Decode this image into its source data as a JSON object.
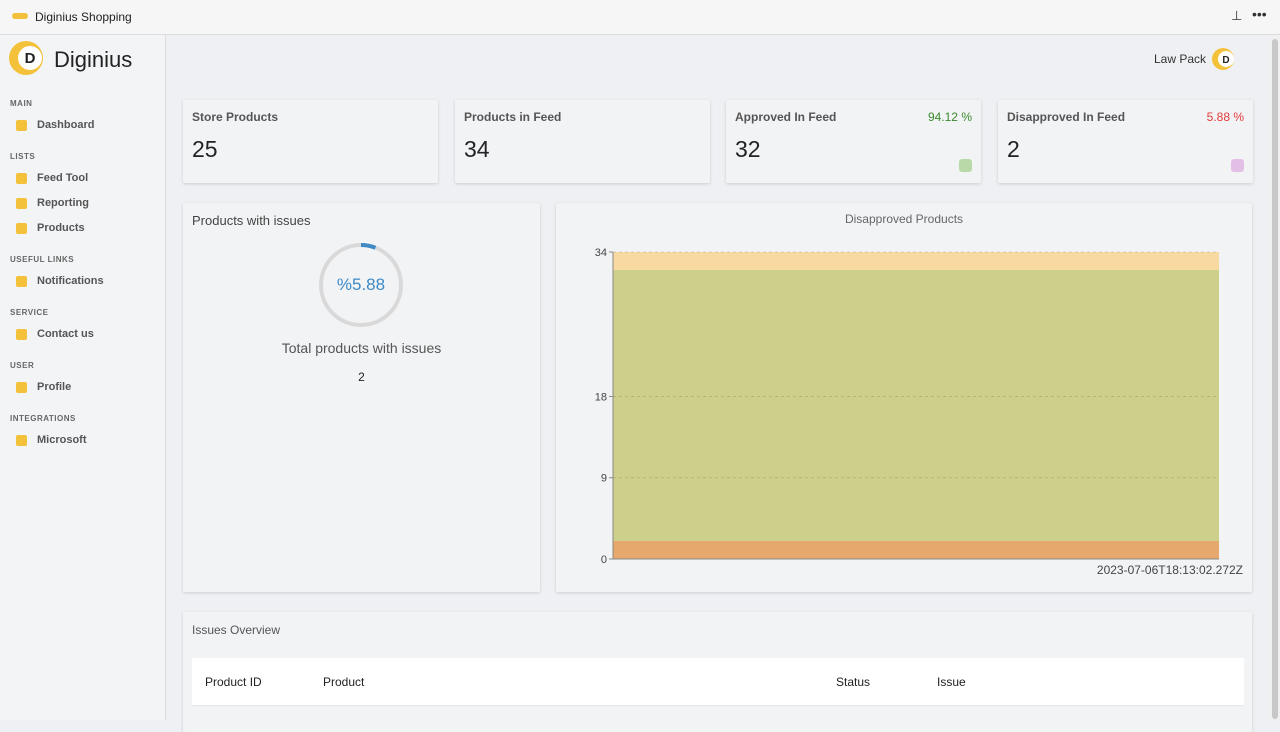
{
  "app_bar": {
    "title": "Diginius Shopping"
  },
  "sidebar": {
    "brand": "Diginius",
    "sections": [
      {
        "heading": "MAIN",
        "items": [
          "Dashboard"
        ]
      },
      {
        "heading": "LISTS",
        "items": [
          "Feed Tool",
          "Reporting",
          "Products"
        ]
      },
      {
        "heading": "USEFUL LINKS",
        "items": [
          "Notifications"
        ]
      },
      {
        "heading": "SERVICE",
        "items": [
          "Contact us"
        ]
      },
      {
        "heading": "USER",
        "items": [
          "Profile"
        ]
      },
      {
        "heading": "INTEGRATIONS",
        "items": [
          "Microsoft"
        ]
      }
    ]
  },
  "header": {
    "account": "Law Pack"
  },
  "stats": [
    {
      "label": "Store Products",
      "value": 25
    },
    {
      "label": "Products in Feed",
      "value": 34
    },
    {
      "label": "Approved In Feed",
      "value": 32,
      "percent": "94.12 %"
    },
    {
      "label": "Disapproved In Feed",
      "value": 2,
      "percent": "5.88 %"
    }
  ],
  "issues_card": {
    "title": "Products with issues",
    "gauge_label": "%5.88",
    "gauge_value": 5.88,
    "caption": "Total products with issues",
    "count": 2
  },
  "chart_data": {
    "type": "area",
    "title": "Disapproved Products",
    "x": [
      "2023-07-06T18:13:02.272Z"
    ],
    "series": [
      {
        "color": "#f8d9a2",
        "values": [
          34
        ]
      },
      {
        "color": "#cdd08a",
        "values": [
          32
        ]
      },
      {
        "color": "#e6a86c",
        "values": [
          2
        ]
      }
    ],
    "ylim": [
      0,
      34
    ],
    "yticks": [
      0,
      9,
      18,
      34
    ],
    "grid": true
  },
  "table": {
    "title": "Issues Overview",
    "columns": [
      "Product ID",
      "Product",
      "Status",
      "Issue"
    ]
  }
}
